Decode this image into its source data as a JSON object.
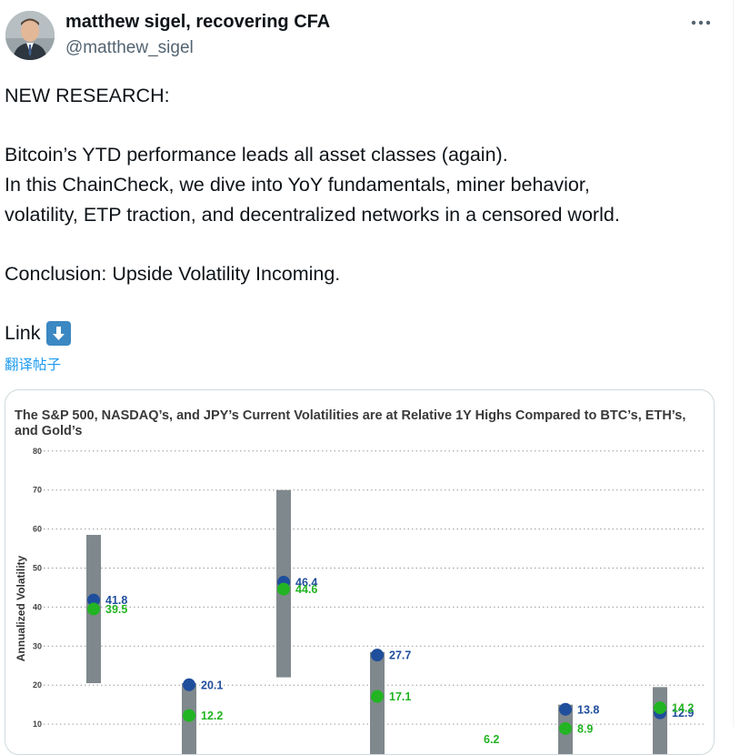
{
  "author": {
    "name": "matthew sigel, recovering CFA",
    "handle": "@matthew_sigel",
    "avatar_icon": "person-avatar"
  },
  "menu": {
    "icon": "more-horizontal-icon"
  },
  "tweet": {
    "lines": [
      "NEW RESEARCH:",
      "Bitcoin’s YTD performance leads all asset classes (again).",
      "In this ChainCheck, we dive into YoY fundamentals, miner behavior,",
      "volatility, ETP traction, and decentralized networks in a censored world.",
      "Conclusion: Upside Volatility Incoming.",
      "Link"
    ],
    "link_emoji_icon": "down-arrow-icon"
  },
  "translate_label": "翻译帖子",
  "colors": {
    "blue_dot": "#1f4e9c",
    "green_dot": "#22b422",
    "bar": "#7f888c",
    "link": "#1d9bf0"
  },
  "chart_data": {
    "type": "range-bar-dot",
    "title": "The S&P 500, NASDAQ’s, and JPY’s Current Volatilities are at Relative 1Y Highs Compared to BTC’s, ETH’s, and Gold’s",
    "ylabel": "Annualized Volatility",
    "ylim": [
      0,
      80
    ],
    "yticks": [
      10,
      20,
      30,
      40,
      50,
      60,
      70,
      80
    ],
    "grid": true,
    "series": [
      {
        "ranges": [
          [
            20.5,
            58.5
          ],
          [
            0,
            20.5
          ],
          [
            22,
            70
          ],
          [
            0,
            28.5
          ],
          null,
          [
            0,
            15
          ],
          [
            0,
            19.5
          ]
        ],
        "blue": [
          41.8,
          20.1,
          46.4,
          27.7,
          null,
          13.8,
          12.9
        ],
        "green": [
          39.5,
          12.2,
          44.6,
          17.1,
          6.2,
          8.9,
          14.2
        ],
        "blue_labels": [
          "41.8",
          "20.1",
          "46.4",
          "27.7",
          "",
          "13.8",
          "12.9"
        ],
        "green_labels": [
          "39.5",
          "12.2",
          "44.6",
          "17.1",
          "6.2",
          "8.9",
          "14.2"
        ]
      }
    ]
  }
}
